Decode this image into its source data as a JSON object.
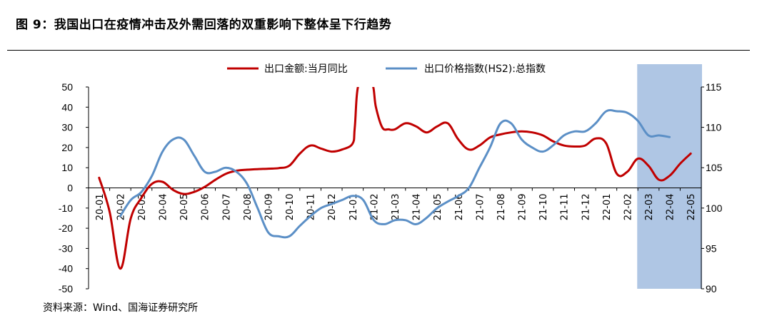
{
  "title": "图 9：我国出口在疫情冲击及外需回落的双重影响下整体呈下行趋势",
  "source": "资料来源：Wind、国海证券研究所",
  "chart_data": {
    "type": "line",
    "categories": [
      "20-01",
      "20-02",
      "20-03",
      "20-04",
      "20-05",
      "20-06",
      "20-07",
      "20-08",
      "20-09",
      "20-10",
      "20-11",
      "20-12",
      "21-01",
      "21-02",
      "21-03",
      "21-04",
      "21-05",
      "21-06",
      "21-07",
      "21-08",
      "21-09",
      "21-10",
      "21-11",
      "21-12",
      "22-01",
      "22-02",
      "22-03",
      "22-04",
      "22-05"
    ],
    "series": [
      {
        "name": "出口金额:当月同比",
        "axis": "left",
        "color": "#C00000",
        "x": [
          0,
          0.5,
          1,
          1.5,
          2,
          2.5,
          3,
          3.5,
          4,
          4.5,
          5,
          5.5,
          6,
          6.5,
          7,
          7.5,
          8,
          8.5,
          9,
          9.5,
          10,
          10.5,
          11,
          11.5,
          12,
          12.1,
          12.3,
          12.9,
          13.1,
          13.4,
          13.7,
          14,
          14.5,
          15,
          15.5,
          16,
          16.5,
          17,
          17.5,
          18,
          18.5,
          19,
          19.5,
          20,
          20.5,
          21,
          21.5,
          22,
          22.5,
          23,
          23.5,
          24,
          24.5,
          25,
          25.5,
          26,
          26.5,
          27,
          27.5,
          28
        ],
        "y": [
          5,
          -12,
          -40,
          -15,
          -5,
          2,
          3,
          -1,
          -3,
          -2,
          0.5,
          4,
          7,
          8.5,
          9,
          9.3,
          9.5,
          9.8,
          11,
          17,
          21,
          19.5,
          18,
          19,
          22,
          30,
          52,
          52,
          40,
          30,
          29,
          29,
          32,
          30.5,
          27.5,
          30.5,
          32,
          24,
          19,
          21,
          25,
          26.5,
          27.5,
          28,
          27.5,
          26,
          23,
          21,
          20.5,
          21,
          24.5,
          22,
          7,
          8,
          14.5,
          11,
          4,
          6,
          12,
          17
        ]
      },
      {
        "name": "出口价格指数(HS2):总指数",
        "axis": "right",
        "color": "#5B8FC6",
        "x": [
          1,
          1.5,
          2,
          2.5,
          3,
          3.5,
          4,
          4.5,
          5,
          5.5,
          6,
          6.5,
          7,
          7.5,
          8,
          8.5,
          9,
          9.5,
          10,
          10.5,
          11,
          11.5,
          12,
          12.5,
          13,
          13.5,
          14,
          14.5,
          15,
          15.5,
          16,
          16.5,
          17,
          17.5,
          18,
          18.5,
          19,
          19.5,
          20,
          20.5,
          21,
          21.5,
          22,
          22.5,
          23,
          23.5,
          24,
          24.5,
          25,
          25.5,
          26,
          26.5,
          27
        ],
        "y": [
          99,
          101,
          102,
          104,
          107,
          108.5,
          108.5,
          106.5,
          104.5,
          104.5,
          105,
          104.5,
          103,
          100,
          97,
          96.5,
          96.5,
          97.8,
          99,
          100,
          100.5,
          101,
          101.5,
          101,
          98.5,
          98,
          98.5,
          98.5,
          98,
          98.8,
          100,
          100.8,
          101.5,
          102.5,
          105,
          107.5,
          110.5,
          110.5,
          108.5,
          107.5,
          107,
          107.8,
          109,
          109.5,
          109.5,
          110.5,
          112,
          112,
          111.8,
          110.8,
          109,
          109,
          108.8
        ]
      }
    ],
    "left_axis": {
      "ylim": [
        -50,
        50
      ],
      "ticks": [
        "50",
        "40",
        "30",
        "20",
        "10",
        "0",
        "-10",
        "-20",
        "-30",
        "-40",
        "-50"
      ]
    },
    "right_axis": {
      "ylim": [
        90,
        115
      ],
      "ticks": [
        "115",
        "110",
        "105",
        "100",
        "95",
        "90"
      ]
    },
    "highlight": {
      "from": "22-03",
      "to": "22-05",
      "color": "#AFC6E4"
    },
    "legend_position": "top",
    "grid": false
  }
}
